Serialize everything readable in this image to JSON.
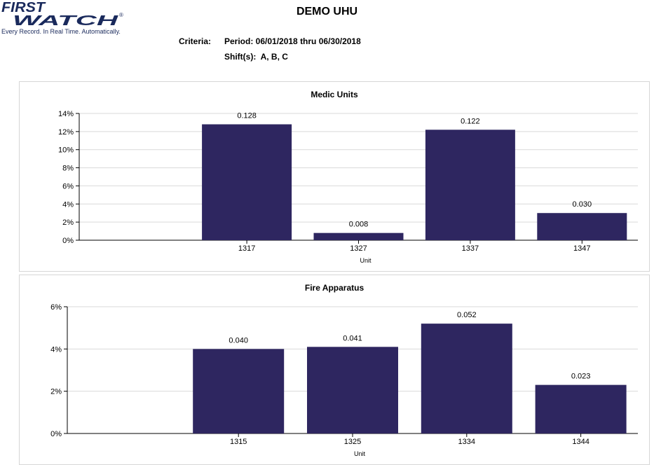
{
  "header": {
    "logo_line1": "FIRST",
    "logo_line2": "WATCH",
    "logo_mark": "®",
    "tagline": "Every Record. In Real Time. Automatically.",
    "title": "DEMO UHU",
    "criteria_label": "Criteria:",
    "period": "Period: 06/01/2018 thru 06/30/2018",
    "shifts_label": "Shift(s):",
    "shifts_value": "A, B, C"
  },
  "colors": {
    "bar": "#2e2660",
    "grid": "#d9d9d9",
    "axis": "#000000"
  },
  "chart_data": [
    {
      "type": "bar",
      "title": "Medic Units",
      "xlabel": "Unit",
      "ylabel": "",
      "categories": [
        "1317",
        "1327",
        "1337",
        "1347"
      ],
      "values": [
        0.128,
        0.008,
        0.122,
        0.03
      ],
      "data_labels": [
        "0.128",
        "0.008",
        "0.122",
        "0.030"
      ],
      "ylim": [
        0,
        0.14
      ],
      "yticks": [
        0,
        0.02,
        0.04,
        0.06,
        0.08,
        0.1,
        0.12,
        0.14
      ],
      "ytick_labels": [
        "0%",
        "2%",
        "4%",
        "6%",
        "8%",
        "10%",
        "12%",
        "14%"
      ],
      "grid": true
    },
    {
      "type": "bar",
      "title": "Fire Apparatus",
      "xlabel": "Unit",
      "ylabel": "",
      "categories": [
        "1315",
        "1325",
        "1334",
        "1344"
      ],
      "values": [
        0.04,
        0.041,
        0.052,
        0.023
      ],
      "data_labels": [
        "0.040",
        "0.041",
        "0.052",
        "0.023"
      ],
      "ylim": [
        0,
        0.06
      ],
      "yticks": [
        0,
        0.02,
        0.04,
        0.06
      ],
      "ytick_labels": [
        "0%",
        "2%",
        "4%",
        "6%"
      ],
      "grid": true
    }
  ]
}
